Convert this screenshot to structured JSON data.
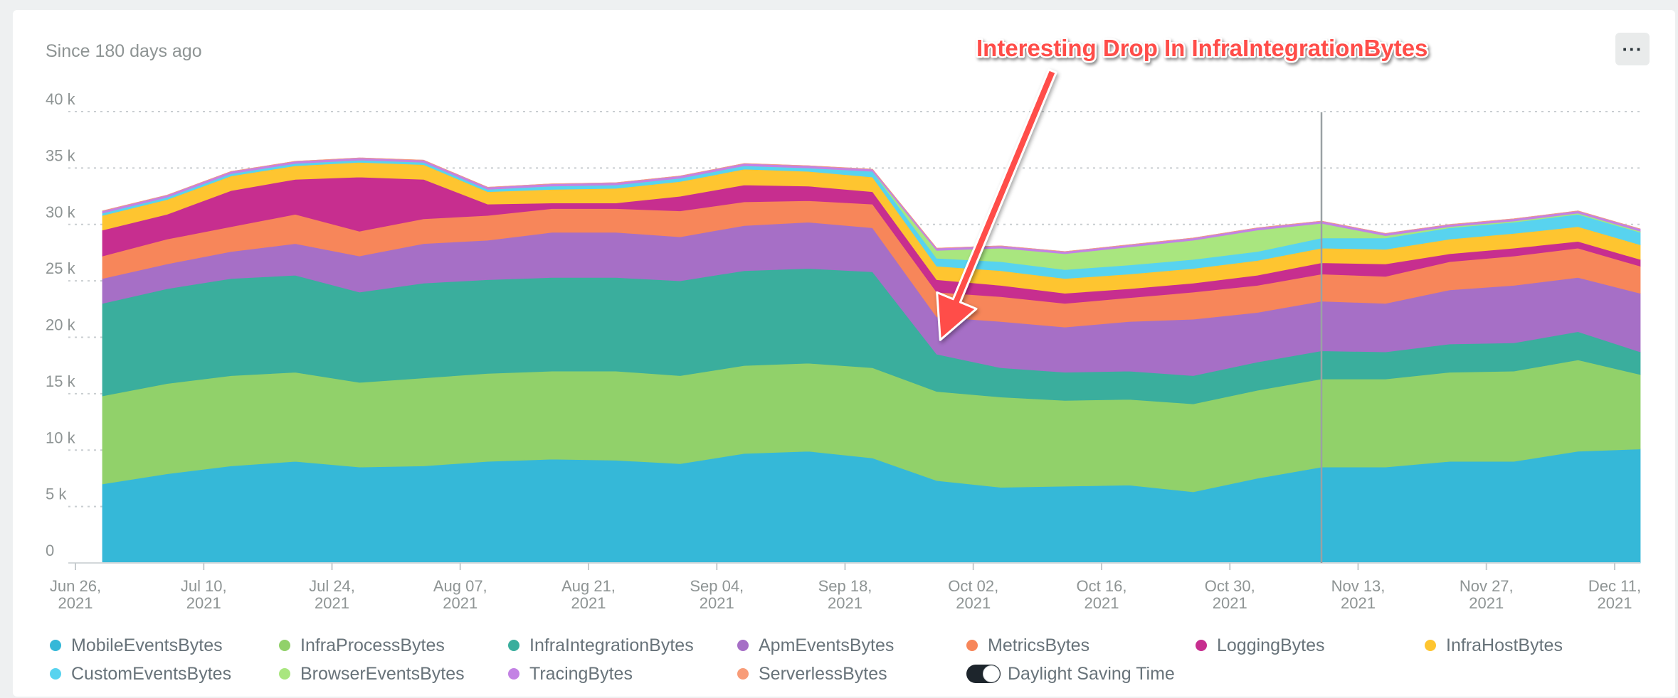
{
  "subtitle": "Since 180 days ago",
  "menu_label": "···",
  "dst_label": "Daylight Saving Time",
  "chart_data": {
    "type": "area",
    "stacked": true,
    "ylim": [
      0,
      40000
    ],
    "yticks": [
      0,
      5000,
      10000,
      15000,
      20000,
      25000,
      30000,
      35000,
      40000
    ],
    "ytick_labels": [
      "0",
      "5 k",
      "10 k",
      "15 k",
      "20 k",
      "25 k",
      "30 k",
      "35 k",
      "40 k"
    ],
    "xtick_labels": [
      [
        "Jun 26,",
        "2021"
      ],
      [
        "Jul 10,",
        "2021"
      ],
      [
        "Jul 24,",
        "2021"
      ],
      [
        "Aug 07,",
        "2021"
      ],
      [
        "Aug 21,",
        "2021"
      ],
      [
        "Sep 04,",
        "2021"
      ],
      [
        "Sep 18,",
        "2021"
      ],
      [
        "Oct 02,",
        "2021"
      ],
      [
        "Oct 16,",
        "2021"
      ],
      [
        "Oct 30,",
        "2021"
      ],
      [
        "Nov 13,",
        "2021"
      ],
      [
        "Nov 27,",
        "2021"
      ],
      [
        "Dec 11,",
        "2021"
      ]
    ],
    "xticks": [
      "2021-06-26",
      "2021-07-10",
      "2021-07-24",
      "2021-08-07",
      "2021-08-21",
      "2021-09-04",
      "2021-09-18",
      "2021-10-02",
      "2021-10-16",
      "2021-10-30",
      "2021-11-13",
      "2021-11-27",
      "2021-12-11"
    ],
    "x": [
      "2021-06-29",
      "2021-07-06",
      "2021-07-13",
      "2021-07-20",
      "2021-07-27",
      "2021-08-03",
      "2021-08-10",
      "2021-08-17",
      "2021-08-24",
      "2021-08-31",
      "2021-09-07",
      "2021-09-14",
      "2021-09-21",
      "2021-09-28",
      "2021-10-05",
      "2021-10-12",
      "2021-10-19",
      "2021-10-26",
      "2021-11-02",
      "2021-11-09",
      "2021-11-16",
      "2021-11-23",
      "2021-11-30",
      "2021-12-07",
      "2021-12-14"
    ],
    "grid": "horizontal-dotted",
    "legend_position": "bottom",
    "series": [
      {
        "name": "MobileEventsBytes",
        "color": "#35b8d8",
        "values": [
          7000,
          7900,
          8600,
          9000,
          8500,
          8600,
          9000,
          9200,
          9100,
          8800,
          9700,
          9900,
          9300,
          7300,
          6700,
          6800,
          6900,
          6300,
          7500,
          8500,
          8500,
          9000,
          9000,
          9900,
          10100
        ]
      },
      {
        "name": "InfraProcessBytes",
        "color": "#91d16a",
        "values": [
          7800,
          8000,
          8000,
          7900,
          7500,
          7800,
          7800,
          7800,
          7900,
          7800,
          7800,
          7800,
          8000,
          7900,
          8000,
          7600,
          7600,
          7800,
          7800,
          7800,
          7800,
          7900,
          8000,
          8100,
          6600
        ]
      },
      {
        "name": "InfraIntegrationBytes",
        "color": "#3aae9d",
        "values": [
          8200,
          8400,
          8600,
          8600,
          8000,
          8400,
          8300,
          8300,
          8300,
          8400,
          8400,
          8400,
          8500,
          3300,
          2600,
          2500,
          2500,
          2500,
          2500,
          2500,
          2400,
          2500,
          2500,
          2500,
          2000
        ]
      },
      {
        "name": "ApmEventsBytes",
        "color": "#a66fc6",
        "values": [
          2200,
          2200,
          2400,
          2800,
          3200,
          3500,
          3500,
          4000,
          4000,
          3900,
          4000,
          4100,
          3900,
          3300,
          4100,
          4000,
          4400,
          5000,
          4400,
          4400,
          4300,
          4800,
          5100,
          4800,
          5200
        ]
      },
      {
        "name": "MetricsBytes",
        "color": "#f7865a",
        "values": [
          2000,
          2200,
          2200,
          2600,
          2200,
          2200,
          2200,
          2100,
          2100,
          2300,
          2100,
          1900,
          2100,
          2200,
          2200,
          2100,
          2100,
          2400,
          2400,
          2400,
          2400,
          2500,
          2600,
          2600,
          2400
        ]
      },
      {
        "name": "LoggingBytes",
        "color": "#c72e8f",
        "values": [
          2300,
          2200,
          3200,
          3100,
          4800,
          3500,
          1000,
          500,
          500,
          1300,
          1500,
          1300,
          1100,
          1100,
          1000,
          900,
          800,
          800,
          900,
          1000,
          1100,
          700,
          700,
          600,
          600
        ]
      },
      {
        "name": "InfraHostBytes",
        "color": "#fec530",
        "values": [
          1300,
          1300,
          1300,
          1200,
          1300,
          1300,
          1100,
          1200,
          1300,
          1300,
          1400,
          1300,
          1300,
          1200,
          1300,
          1300,
          1300,
          1300,
          1300,
          1300,
          1300,
          1300,
          1300,
          1300,
          1300
        ]
      },
      {
        "name": "CustomEventsBytes",
        "color": "#58d3ef",
        "values": [
          200,
          200,
          200,
          200,
          200,
          200,
          200,
          300,
          300,
          300,
          300,
          300,
          500,
          700,
          800,
          800,
          800,
          800,
          800,
          900,
          1000,
          1000,
          1000,
          1100,
          1100
        ]
      },
      {
        "name": "BrowserEventsBytes",
        "color": "#a9e67f",
        "values": [
          0,
          0,
          0,
          0,
          0,
          0,
          0,
          0,
          0,
          0,
          0,
          0,
          0,
          700,
          1200,
          1400,
          1600,
          1700,
          1900,
          1300,
          200,
          100,
          100,
          100,
          100
        ]
      },
      {
        "name": "TracingBytes",
        "color": "#c382e4",
        "values": [
          200,
          200,
          200,
          200,
          200,
          200,
          200,
          200,
          200,
          200,
          200,
          200,
          200,
          200,
          200,
          200,
          200,
          200,
          200,
          200,
          200,
          200,
          200,
          200,
          200
        ]
      },
      {
        "name": "ServerlessBytes",
        "color": "#f89c78",
        "values": [
          0,
          0,
          0,
          0,
          0,
          0,
          0,
          0,
          0,
          0,
          0,
          0,
          0,
          0,
          0,
          0,
          0,
          0,
          0,
          0,
          0,
          0,
          0,
          0,
          0
        ]
      }
    ],
    "annotation": {
      "text": "Interesting Drop In InfraIntegrationBytes",
      "target_x": "2021-09-28",
      "target_y": 18500
    },
    "marker_x": "2021-11-09"
  }
}
